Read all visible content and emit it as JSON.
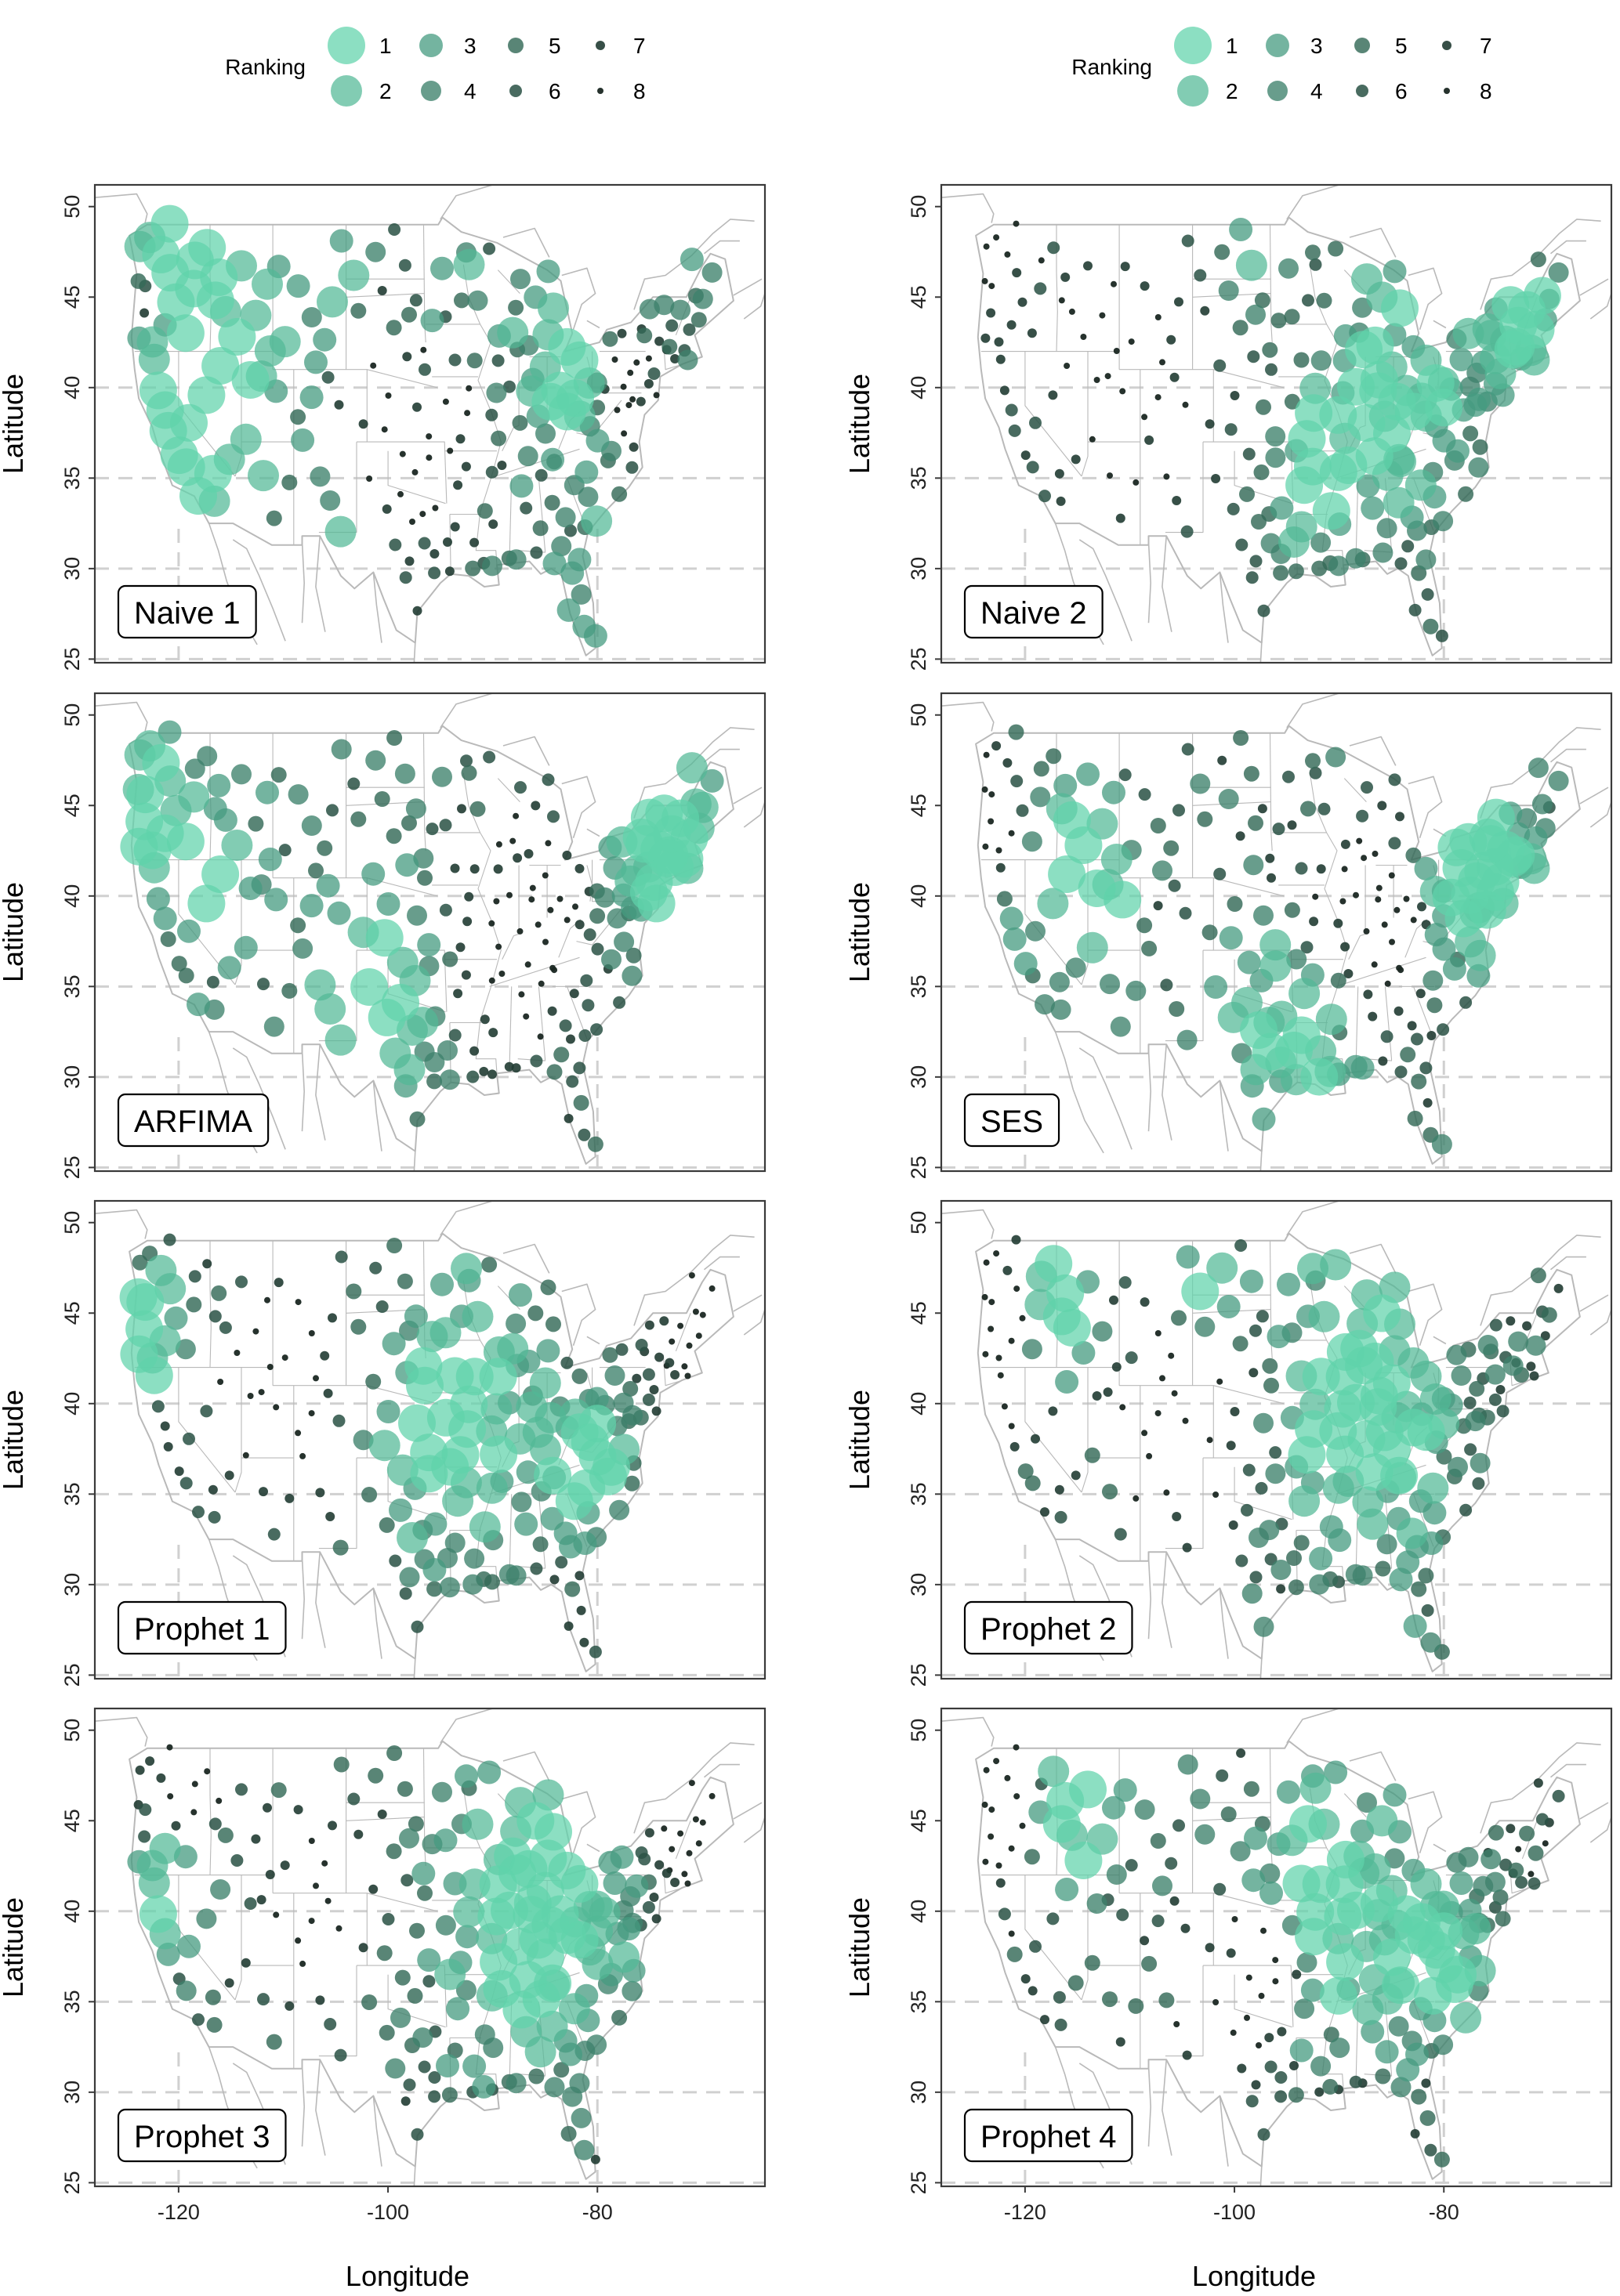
{
  "legend": {
    "title": "Ranking",
    "ranks": [
      "1",
      "2",
      "3",
      "4",
      "5",
      "6",
      "7",
      "8"
    ]
  },
  "axes": {
    "xlabel": "Longitude",
    "ylabel": "Latitude",
    "xticks": [
      "-120",
      "-100",
      "-80"
    ],
    "yticks": [
      "25",
      "30",
      "35",
      "40",
      "45",
      "50"
    ]
  },
  "colors": {
    "rank_fill": [
      "#5fd3ab",
      "#52b895",
      "#469b80",
      "#3d826b",
      "#346a58",
      "#2b5346",
      "#213c33",
      "#1a2722"
    ],
    "state_lines": "#b9b9b9",
    "grid": "#d0d0d0",
    "frame": "#3a3a3a"
  },
  "panels": [
    {
      "label": "Naive 1"
    },
    {
      "label": "Naive 2"
    },
    {
      "label": "ARFIMA"
    },
    {
      "label": "SES"
    },
    {
      "label": "Prophet 1"
    },
    {
      "label": "Prophet 2"
    },
    {
      "label": "Prophet 3"
    },
    {
      "label": "Prophet 4"
    }
  ]
}
